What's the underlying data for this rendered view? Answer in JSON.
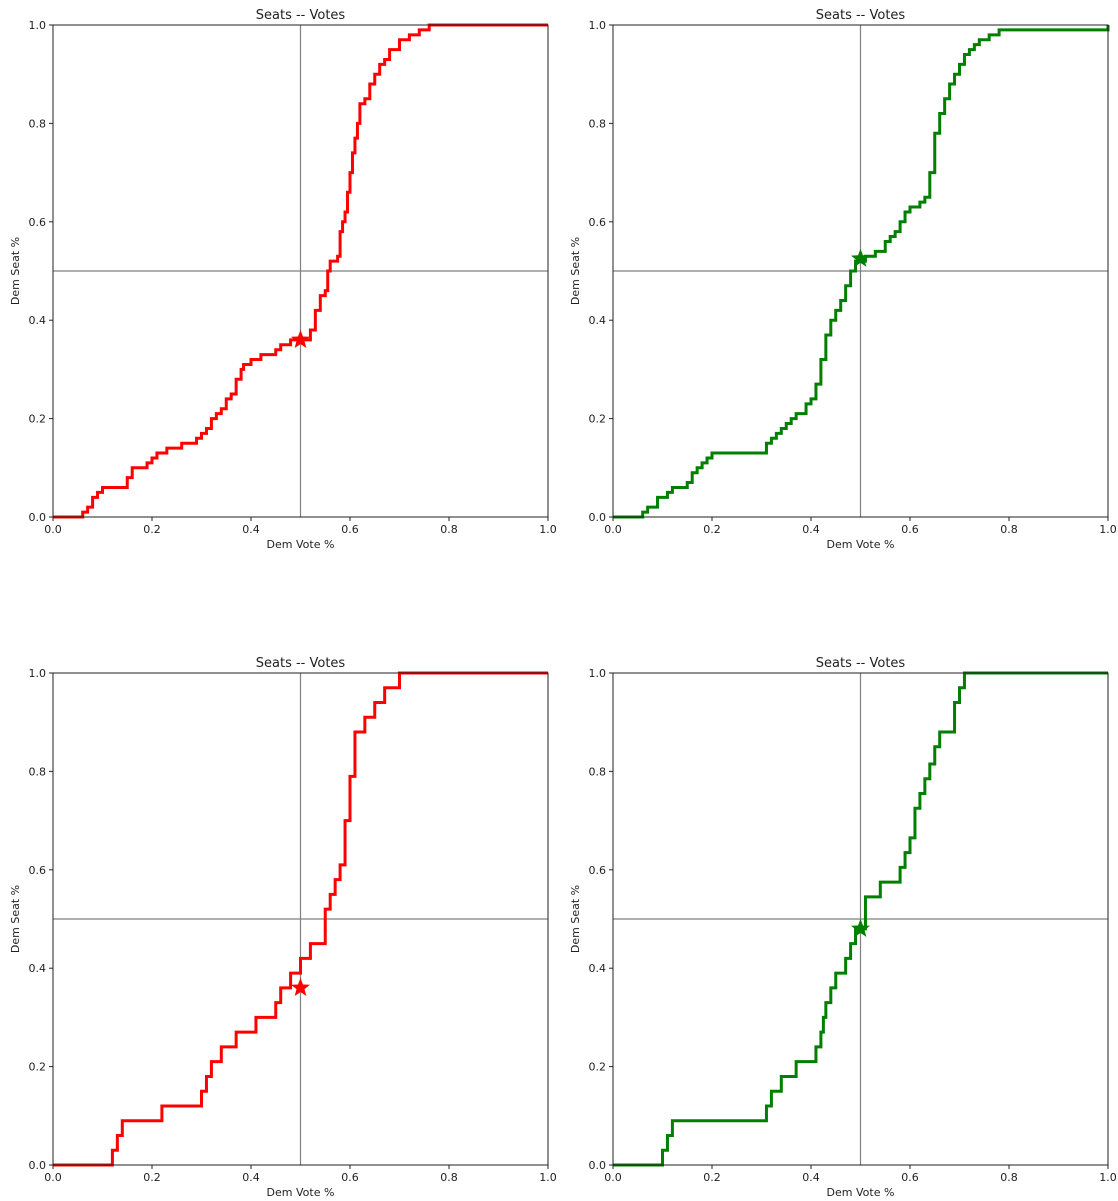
{
  "chart_data": [
    {
      "type": "line",
      "title": "Seats -- Votes",
      "xlabel": "Dem Vote %",
      "ylabel": "Dem Seat %",
      "xlim": [
        0,
        1
      ],
      "ylim": [
        0,
        1
      ],
      "xticks": [
        "0.0",
        "0.2",
        "0.4",
        "0.6",
        "0.8",
        "1.0"
      ],
      "yticks": [
        "0.0",
        "0.2",
        "0.4",
        "0.6",
        "0.8",
        "1.0"
      ],
      "grid": false,
      "color": "#ff0000",
      "reference_lines": {
        "x": 0.5,
        "y": 0.5
      },
      "marker": {
        "shape": "star",
        "x": 0.5,
        "y": 0.36
      },
      "series": [
        {
          "x": [
            0.0,
            0.06,
            0.07,
            0.08,
            0.09,
            0.1,
            0.12,
            0.15,
            0.16,
            0.19,
            0.2,
            0.21,
            0.23,
            0.26,
            0.29,
            0.3,
            0.31,
            0.32,
            0.33,
            0.34,
            0.35,
            0.36,
            0.37,
            0.38,
            0.385,
            0.39,
            0.4,
            0.42,
            0.45,
            0.46,
            0.48,
            0.52,
            0.53,
            0.54,
            0.55,
            0.555,
            0.56,
            0.575,
            0.58,
            0.585,
            0.59,
            0.595,
            0.6,
            0.605,
            0.61,
            0.615,
            0.62,
            0.63,
            0.64,
            0.65,
            0.66,
            0.67,
            0.68,
            0.7,
            0.72,
            0.74,
            0.76,
            1.0
          ],
          "y": [
            0.0,
            0.01,
            0.02,
            0.04,
            0.05,
            0.06,
            0.06,
            0.08,
            0.1,
            0.11,
            0.12,
            0.13,
            0.14,
            0.15,
            0.16,
            0.17,
            0.18,
            0.2,
            0.21,
            0.22,
            0.24,
            0.25,
            0.28,
            0.3,
            0.31,
            0.31,
            0.32,
            0.33,
            0.34,
            0.35,
            0.36,
            0.38,
            0.42,
            0.45,
            0.46,
            0.5,
            0.52,
            0.53,
            0.58,
            0.6,
            0.62,
            0.66,
            0.7,
            0.74,
            0.77,
            0.8,
            0.84,
            0.85,
            0.88,
            0.9,
            0.92,
            0.93,
            0.95,
            0.97,
            0.98,
            0.99,
            1.0,
            1.0
          ]
        }
      ]
    },
    {
      "type": "line",
      "title": "Seats -- Votes",
      "xlabel": "Dem Vote %",
      "ylabel": "Dem Seat %",
      "xlim": [
        0,
        1
      ],
      "ylim": [
        0,
        1
      ],
      "xticks": [
        "0.0",
        "0.2",
        "0.4",
        "0.6",
        "0.8",
        "1.0"
      ],
      "yticks": [
        "0.0",
        "0.2",
        "0.4",
        "0.6",
        "0.8",
        "1.0"
      ],
      "grid": false,
      "color": "#007f00",
      "reference_lines": {
        "x": 0.5,
        "y": 0.5
      },
      "marker": {
        "shape": "star",
        "x": 0.5,
        "y": 0.525
      },
      "series": [
        {
          "x": [
            0.0,
            0.06,
            0.07,
            0.09,
            0.11,
            0.12,
            0.15,
            0.16,
            0.17,
            0.18,
            0.19,
            0.2,
            0.21,
            0.31,
            0.32,
            0.33,
            0.34,
            0.35,
            0.36,
            0.37,
            0.39,
            0.4,
            0.41,
            0.42,
            0.43,
            0.44,
            0.45,
            0.46,
            0.47,
            0.48,
            0.49,
            0.5,
            0.51,
            0.53,
            0.55,
            0.56,
            0.57,
            0.58,
            0.59,
            0.6,
            0.62,
            0.63,
            0.64,
            0.65,
            0.66,
            0.67,
            0.68,
            0.69,
            0.7,
            0.71,
            0.72,
            0.73,
            0.74,
            0.76,
            0.78,
            1.0
          ],
          "y": [
            0.0,
            0.01,
            0.02,
            0.04,
            0.05,
            0.06,
            0.07,
            0.09,
            0.1,
            0.11,
            0.12,
            0.13,
            0.13,
            0.15,
            0.16,
            0.17,
            0.18,
            0.19,
            0.2,
            0.21,
            0.23,
            0.24,
            0.27,
            0.32,
            0.37,
            0.4,
            0.42,
            0.44,
            0.47,
            0.5,
            0.52,
            0.52,
            0.53,
            0.54,
            0.56,
            0.57,
            0.58,
            0.6,
            0.62,
            0.63,
            0.64,
            0.65,
            0.7,
            0.78,
            0.82,
            0.85,
            0.88,
            0.9,
            0.92,
            0.94,
            0.95,
            0.96,
            0.97,
            0.98,
            0.99,
            1.0
          ]
        }
      ]
    },
    {
      "type": "line",
      "title": "Seats -- Votes",
      "xlabel": "Dem Vote %",
      "ylabel": "Dem Seat %",
      "xlim": [
        0,
        1
      ],
      "ylim": [
        0,
        1
      ],
      "xticks": [
        "0.0",
        "0.2",
        "0.4",
        "0.6",
        "0.8",
        "1.0"
      ],
      "yticks": [
        "0.0",
        "0.2",
        "0.4",
        "0.6",
        "0.8",
        "1.0"
      ],
      "grid": false,
      "color": "#ff0000",
      "reference_lines": {
        "x": 0.5,
        "y": 0.5
      },
      "marker": {
        "shape": "star",
        "x": 0.5,
        "y": 0.36
      },
      "series": [
        {
          "x": [
            0.0,
            0.12,
            0.13,
            0.14,
            0.15,
            0.22,
            0.3,
            0.31,
            0.32,
            0.33,
            0.34,
            0.37,
            0.39,
            0.41,
            0.45,
            0.46,
            0.48,
            0.5,
            0.52,
            0.55,
            0.56,
            0.57,
            0.58,
            0.59,
            0.6,
            0.61,
            0.63,
            0.65,
            0.67,
            0.69,
            0.7,
            1.0
          ],
          "y": [
            0.0,
            0.03,
            0.06,
            0.09,
            0.09,
            0.12,
            0.15,
            0.18,
            0.21,
            0.21,
            0.24,
            0.27,
            0.27,
            0.3,
            0.33,
            0.36,
            0.39,
            0.42,
            0.45,
            0.52,
            0.55,
            0.58,
            0.61,
            0.7,
            0.79,
            0.88,
            0.91,
            0.94,
            0.97,
            0.97,
            1.0,
            1.0
          ]
        }
      ]
    },
    {
      "type": "line",
      "title": "Seats -- Votes",
      "xlabel": "Dem Vote %",
      "ylabel": "Dem Seat %",
      "xlim": [
        0,
        1
      ],
      "ylim": [
        0,
        1
      ],
      "xticks": [
        "0.0",
        "0.2",
        "0.4",
        "0.6",
        "0.8",
        "1.0"
      ],
      "yticks": [
        "0.0",
        "0.2",
        "0.4",
        "0.6",
        "0.8",
        "1.0"
      ],
      "grid": false,
      "color": "#007f00",
      "reference_lines": {
        "x": 0.5,
        "y": 0.5
      },
      "marker": {
        "shape": "star",
        "x": 0.5,
        "y": 0.48
      },
      "series": [
        {
          "x": [
            0.0,
            0.1,
            0.11,
            0.12,
            0.31,
            0.32,
            0.34,
            0.37,
            0.41,
            0.42,
            0.425,
            0.43,
            0.44,
            0.45,
            0.47,
            0.48,
            0.49,
            0.51,
            0.54,
            0.58,
            0.59,
            0.6,
            0.61,
            0.62,
            0.63,
            0.64,
            0.65,
            0.66,
            0.69,
            0.7,
            0.71,
            1.0
          ],
          "y": [
            0.0,
            0.03,
            0.06,
            0.09,
            0.12,
            0.15,
            0.18,
            0.21,
            0.24,
            0.27,
            0.3,
            0.33,
            0.36,
            0.39,
            0.42,
            0.45,
            0.48,
            0.545,
            0.575,
            0.605,
            0.635,
            0.665,
            0.725,
            0.755,
            0.785,
            0.815,
            0.85,
            0.88,
            0.94,
            0.97,
            1.0,
            1.0
          ]
        }
      ]
    }
  ]
}
